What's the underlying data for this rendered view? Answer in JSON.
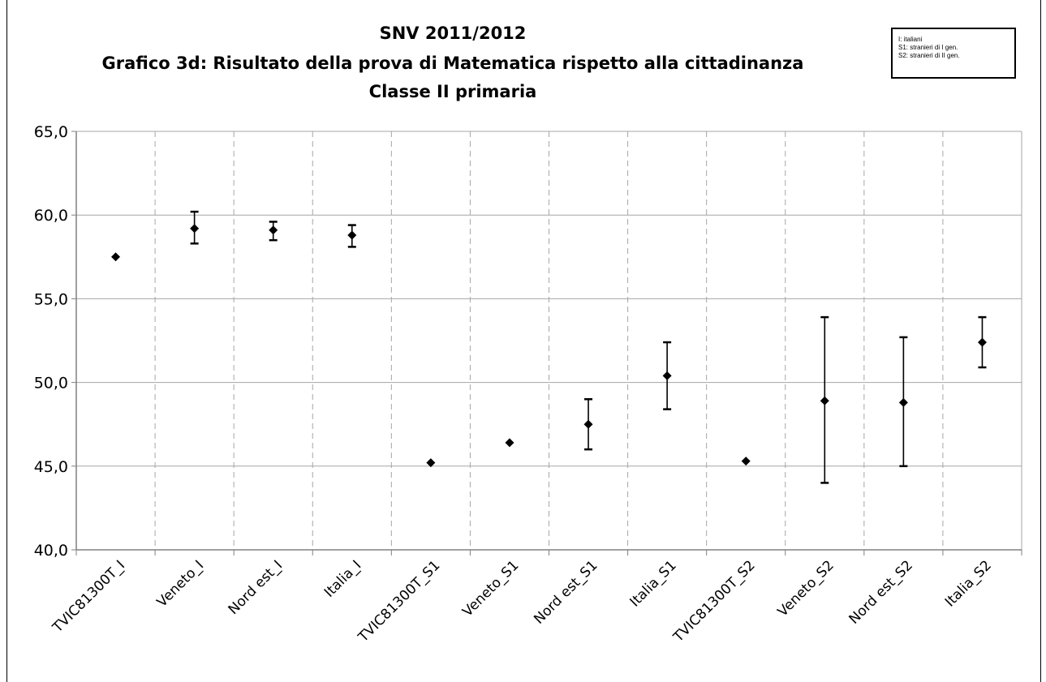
{
  "chart_data": {
    "type": "scatter",
    "title": [
      "SNV 2011/2012",
      "Grafico 3d: Risultato della prova di Matematica rispetto alla cittadinanza",
      "Classe II primaria"
    ],
    "legend": [
      "I:    italiani",
      "S1:  stranieri  di  I gen.",
      "S2:  stranieri  di  II gen."
    ],
    "legend_position": "top-right",
    "ylim": [
      40,
      65
    ],
    "ytick_labels": [
      "40,0",
      "45,0",
      "50,0",
      "55,0",
      "60,0",
      "65,0"
    ],
    "ytick_values": [
      40,
      45,
      50,
      55,
      60,
      65
    ],
    "grid": "horizontal solid, vertical dashed",
    "categories": [
      "TVIC81300T_I",
      "Veneto_I",
      "Nord est_I",
      "Italia_I",
      "TVIC81300T_S1",
      "Veneto_S1",
      "Nord est_S1",
      "Italia_S1",
      "TVIC81300T_S2",
      "Veneto_S2",
      "Nord est_S2",
      "Italia_S2"
    ],
    "values": [
      57.5,
      59.2,
      59.1,
      58.8,
      45.2,
      46.4,
      47.5,
      50.4,
      45.3,
      48.9,
      48.8,
      52.4
    ],
    "error_low": [
      null,
      58.3,
      58.5,
      58.1,
      null,
      null,
      46.0,
      48.4,
      null,
      44.0,
      45.0,
      50.9
    ],
    "error_high": [
      null,
      60.2,
      59.6,
      59.4,
      null,
      null,
      49.0,
      52.4,
      null,
      53.9,
      52.7,
      53.9
    ],
    "colors": {
      "marker": "#000000",
      "grid": "#a6a6a6",
      "axis": "#808080"
    }
  }
}
